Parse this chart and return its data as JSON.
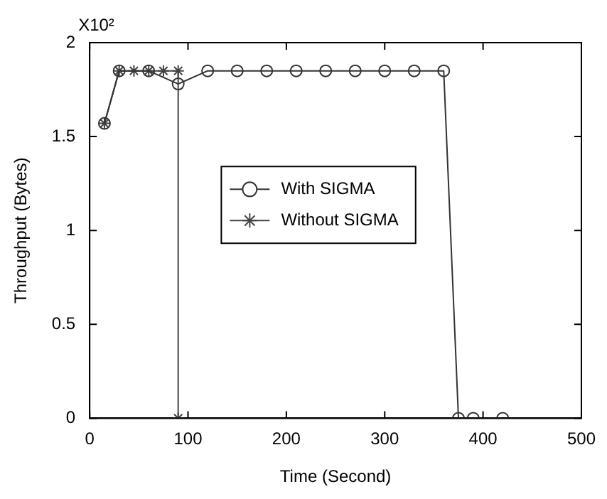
{
  "chart_data": {
    "type": "line",
    "xlabel": "Time (Second)",
    "ylabel": "Throughput (Bytes)",
    "annotations": [
      "X10²"
    ],
    "xlim": [
      0,
      500
    ],
    "xticks": [
      0,
      100,
      200,
      300,
      400,
      500
    ],
    "ylim": [
      0,
      2
    ],
    "yticks": [
      0,
      0.5,
      1,
      1.5,
      2
    ],
    "grid": false,
    "legend": "center",
    "line_style": "solid",
    "series": [
      {
        "name": "With SIGMA",
        "color": "#333333",
        "marker": "circle",
        "x": [
          15,
          30,
          60,
          90,
          120,
          150,
          180,
          210,
          240,
          270,
          300,
          330,
          360,
          375,
          390,
          420
        ],
        "values": [
          1.57,
          1.85,
          1.85,
          1.78,
          1.85,
          1.85,
          1.85,
          1.85,
          1.85,
          1.85,
          1.85,
          1.85,
          1.85,
          0,
          0,
          0
        ]
      },
      {
        "name": "Without SIGMA",
        "color": "#444444",
        "marker": "cross",
        "x": [
          15,
          30,
          45,
          60,
          75,
          90,
          90
        ],
        "values": [
          1.57,
          1.85,
          1.85,
          1.85,
          1.85,
          1.85,
          0
        ]
      }
    ]
  }
}
